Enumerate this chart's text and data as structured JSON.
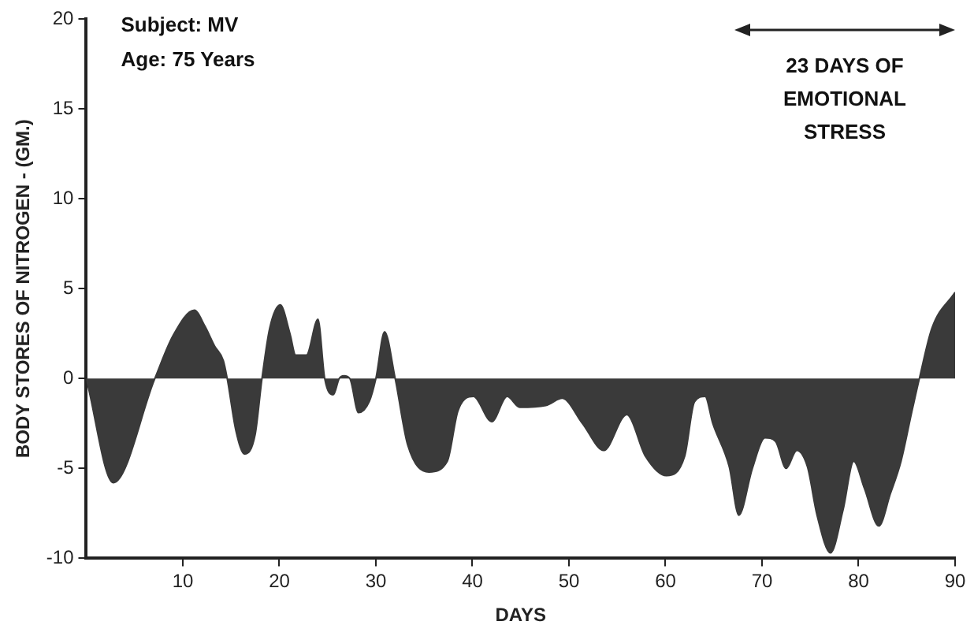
{
  "chart_data": {
    "type": "area",
    "xlabel": "DAYS",
    "ylabel": "BODY STORES OF NITROGEN - (GM.)",
    "annotations": [
      "Subject: MV",
      "Age: 75 Years",
      "23 DAYS OF EMOTIONAL STRESS"
    ],
    "xlim": [
      0,
      90
    ],
    "xticks": [
      10,
      20,
      30,
      40,
      50,
      60,
      70,
      80,
      90
    ],
    "ylim": [
      -10,
      20
    ],
    "yticks": [
      -10,
      -5,
      0,
      5,
      10,
      15,
      20
    ],
    "grid": false,
    "legend": false,
    "marker": "none",
    "series": [
      {
        "color": "#3a3a3a",
        "x": [
          0,
          2.8,
          7.1,
          9.0,
          11.2,
          12.3,
          13.3,
          14.2,
          14.6,
          15.5,
          16.4,
          17.5,
          18.2,
          19.0,
          20.1,
          21.1,
          21.7,
          22.8,
          24.0,
          24.7,
          25.6,
          26.2,
          26.7,
          27.3,
          28.2,
          29.3,
          30.0,
          30.9,
          32.0,
          33.3,
          35.5,
          37.4,
          38.5,
          40.1,
          42.0,
          43.6,
          44.9,
          47.6,
          49.3,
          51.4,
          53.6,
          56.0,
          57.9,
          60.1,
          62.0,
          63.0,
          64.1,
          64.9,
          66.6,
          67.6,
          69.0,
          70.3,
          71.4,
          72.5,
          73.6,
          74.7,
          75.7,
          77.1,
          78.4,
          79.5,
          80.6,
          82.1,
          83.3,
          84.4,
          85.5,
          86.3,
          87.6,
          90
        ],
        "values": [
          0,
          -5.8,
          0,
          2.4,
          3.8,
          2.9,
          1.8,
          1.0,
          0,
          -2.9,
          -4.2,
          -3.1,
          0,
          2.8,
          4.1,
          2.5,
          1.3,
          1.3,
          3.3,
          0,
          -0.9,
          0,
          0.15,
          0,
          -1.9,
          -1.3,
          0,
          2.6,
          0,
          -3.7,
          -5.2,
          -4.6,
          -1.8,
          -1.0,
          -2.4,
          -1.0,
          -1.6,
          -1.5,
          -1.1,
          -2.5,
          -4.0,
          -2.0,
          -4.3,
          -5.4,
          -4.3,
          -1.3,
          -1.0,
          -2.5,
          -4.9,
          -7.6,
          -5.0,
          -3.3,
          -3.5,
          -5.0,
          -4.0,
          -4.9,
          -7.6,
          -9.7,
          -7.3,
          -4.6,
          -6.1,
          -8.2,
          -6.4,
          -4.6,
          -1.9,
          0,
          2.8,
          4.8
        ]
      }
    ]
  }
}
